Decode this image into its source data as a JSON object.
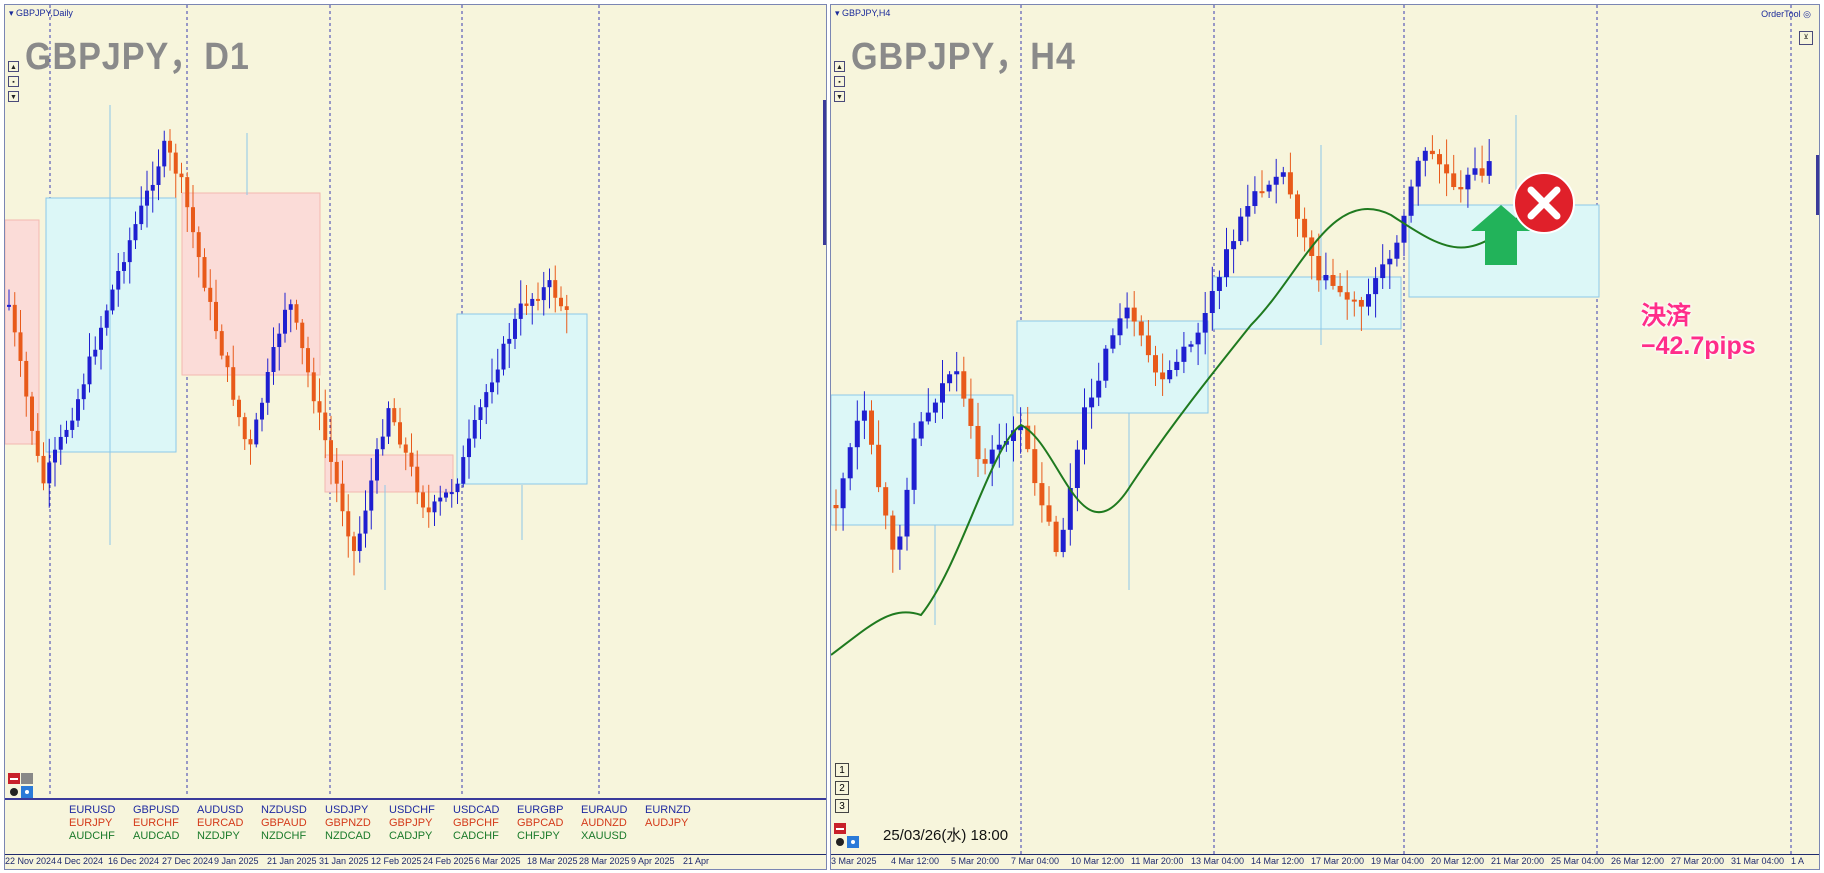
{
  "left": {
    "window_title": "GBPJPY,Daily",
    "big_title": "GBPJPY，D1",
    "x_labels": [
      "22 Nov 2024",
      "4 Dec 2024",
      "16 Dec 2024",
      "27 Dec 2024",
      "9 Jan 2025",
      "21 Jan 2025",
      "31 Jan 2025",
      "12 Feb 2025",
      "24 Feb 2025",
      "6 Mar 2025",
      "18 Mar 2025",
      "28 Mar 2025",
      "9 Apr 2025",
      "21 Apr"
    ],
    "pairs": [
      [
        "EURUSD",
        "EURJPY",
        "AUDCHF"
      ],
      [
        "GBPUSD",
        "EURCHF",
        "AUDCAD"
      ],
      [
        "AUDUSD",
        "EURCAD",
        "NZDJPY"
      ],
      [
        "NZDUSD",
        "GBPAUD",
        "NZDCHF"
      ],
      [
        "USDJPY",
        "GBPNZD",
        "NZDCAD"
      ],
      [
        "USDCHF",
        "GBPJPY",
        "CADJPY"
      ],
      [
        "USDCAD",
        "GBPCHF",
        "CADCHF"
      ],
      [
        "EURGBP",
        "GBPCAD",
        "CHFJPY"
      ],
      [
        "EURAUD",
        "AUDNZD",
        "XAUUSD"
      ],
      [
        "EURNZD",
        "AUDJPY",
        ""
      ]
    ]
  },
  "right": {
    "window_title": "GBPJPY,H4",
    "big_title": "GBPJPY，H4",
    "tool_label": "OrderTool",
    "datetime": "25/03/26(水) 18:00",
    "num_buttons": [
      "1",
      "2",
      "3"
    ],
    "settle_line1": "決済",
    "settle_line2": "−42.7pips",
    "x_labels": [
      "3 Mar 2025",
      "4 Mar 12:00",
      "5 Mar 20:00",
      "7 Mar 04:00",
      "10 Mar 12:00",
      "11 Mar 20:00",
      "13 Mar 04:00",
      "14 Mar 12:00",
      "17 Mar 20:00",
      "19 Mar 04:00",
      "20 Mar 12:00",
      "21 Mar 20:00",
      "25 Mar 04:00",
      "26 Mar 12:00",
      "27 Mar 20:00",
      "31 Mar 04:00",
      "1 A"
    ]
  },
  "colors": {
    "bull": "#1f1fd0",
    "bear": "#e85a1a",
    "background": "#f7f5dc",
    "blue_box_fill": "#dcf7f7",
    "blue_box_stroke": "#8cc8e8",
    "red_box_fill": "#fbdcd8",
    "red_box_stroke": "#f3b8b0",
    "ma_line": "#1f7a1f",
    "arrow": "#22b35a",
    "close_icon": "#e0202a",
    "settle_text": "#ff2d8a"
  },
  "icons": [
    "scroll-up-icon",
    "zoom-icon",
    "scroll-down-icon",
    "close-window-icon",
    "chart-tool-icon",
    "arrow-up-icon",
    "close-x-icon"
  ]
}
